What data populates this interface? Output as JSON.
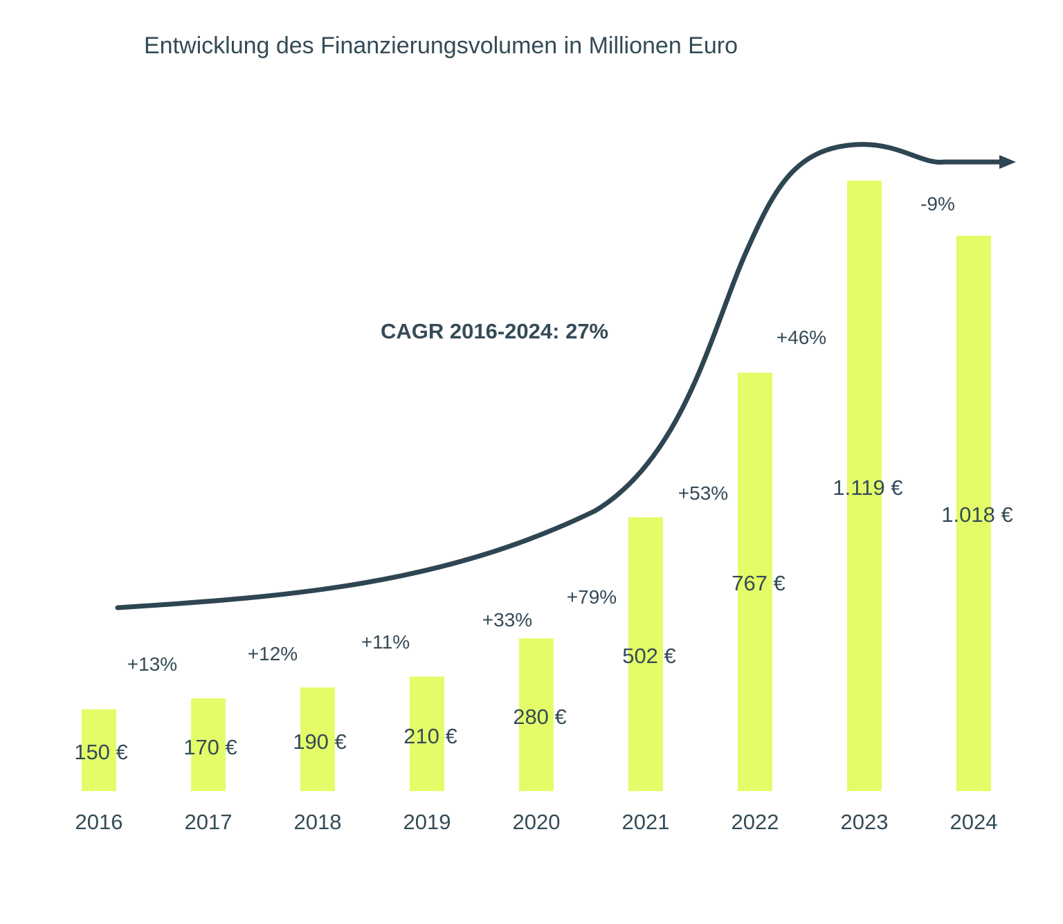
{
  "colors": {
    "bar": "#e4fc68",
    "text": "#344b57",
    "trend": "#2e4552"
  },
  "chart_data": {
    "type": "bar",
    "title": "Entwicklung des Finanzierungsvolumen in Millionen Euro",
    "categories": [
      "2016",
      "2017",
      "2018",
      "2019",
      "2020",
      "2021",
      "2022",
      "2023",
      "2024"
    ],
    "values": [
      150,
      170,
      190,
      210,
      280,
      502,
      767,
      1119,
      1018
    ],
    "value_labels": [
      "150 €",
      "170 €",
      "190 €",
      "210 €",
      "280 €",
      "502 €",
      "767 €",
      "1.119 €",
      "1.018 €"
    ],
    "growth_labels": [
      "+13%",
      "+12%",
      "+11%",
      "+33%",
      "+79%",
      "+53%",
      "+46%",
      "-9%"
    ],
    "annotation": "CAGR 2016-2024: 27%",
    "ylim": [
      0,
      1119
    ],
    "grid": false,
    "legend": "none"
  }
}
